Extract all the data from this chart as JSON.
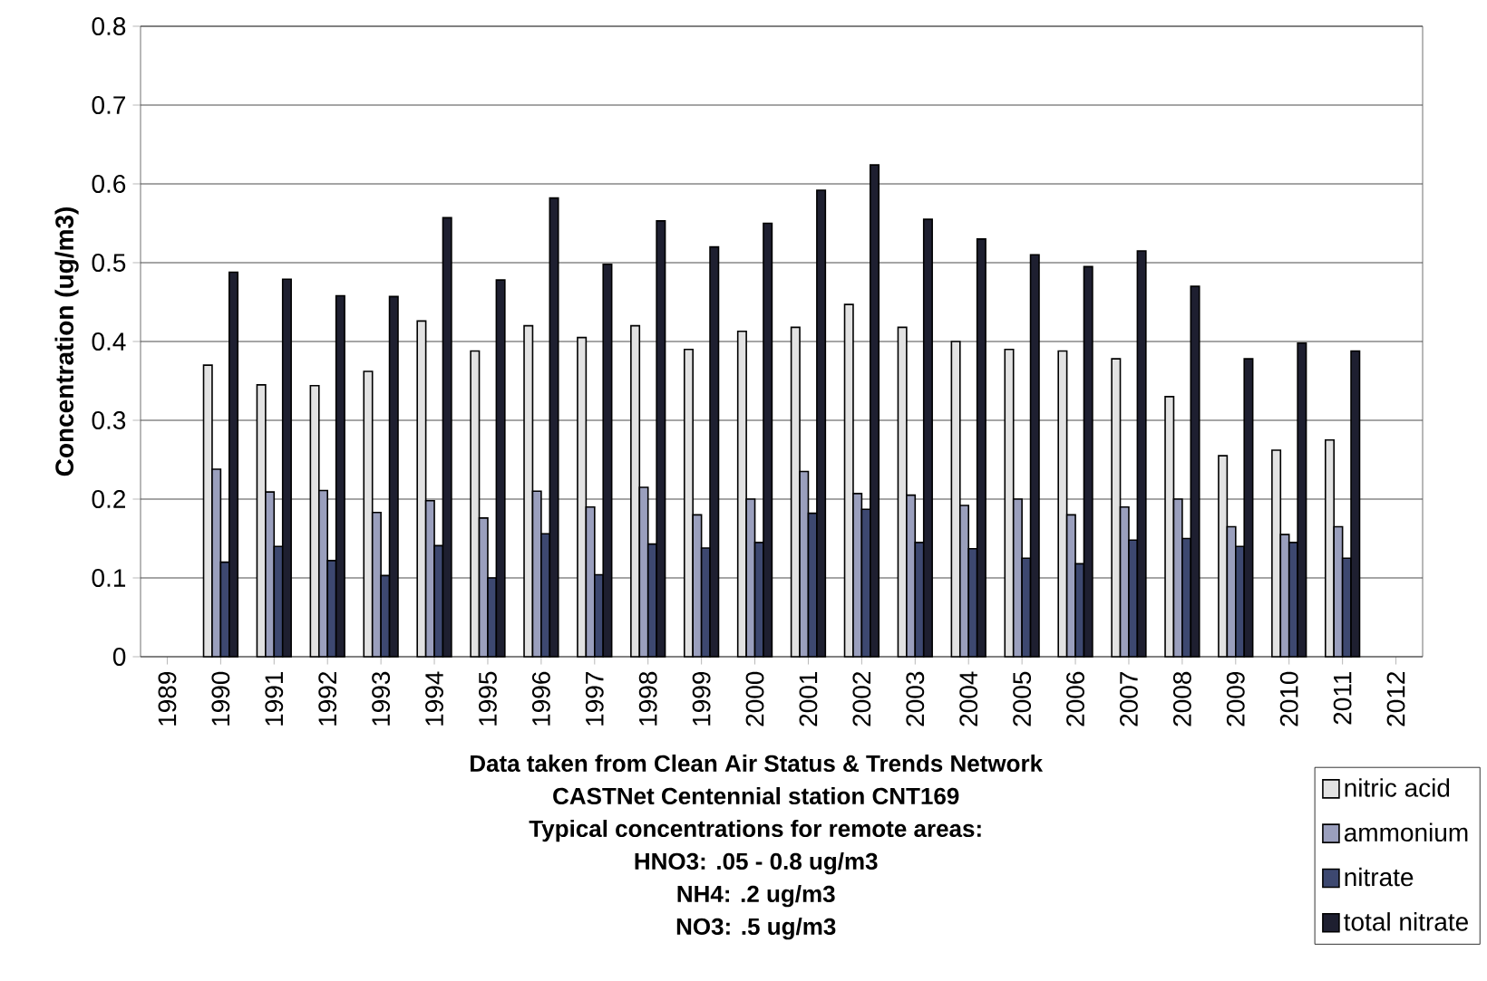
{
  "chart_data": {
    "type": "bar",
    "ylabel": "Concentration (ug/m3)",
    "categories": [
      "1989",
      "1990",
      "1991",
      "1992",
      "1993",
      "1994",
      "1995",
      "1996",
      "1997",
      "1998",
      "1999",
      "2000",
      "2001",
      "2002",
      "2003",
      "2004",
      "2005",
      "2006",
      "2007",
      "2008",
      "2009",
      "2010",
      "2011",
      "2012"
    ],
    "series": [
      {
        "name": "nitric acid",
        "color": "#e2e2e2",
        "values": [
          null,
          0.37,
          0.345,
          0.344,
          0.362,
          0.426,
          0.388,
          0.42,
          0.405,
          0.42,
          0.39,
          0.413,
          0.418,
          0.447,
          0.418,
          0.4,
          0.39,
          0.388,
          0.378,
          0.33,
          0.255,
          0.262,
          0.275,
          null
        ]
      },
      {
        "name": "ammonium",
        "color": "#9a9fbd",
        "values": [
          null,
          0.238,
          0.209,
          0.211,
          0.183,
          0.198,
          0.176,
          0.21,
          0.19,
          0.215,
          0.18,
          0.2,
          0.235,
          0.207,
          0.205,
          0.192,
          0.2,
          0.18,
          0.19,
          0.2,
          0.165,
          0.155,
          0.165,
          null
        ]
      },
      {
        "name": "nitrate",
        "color": "#3d4870",
        "values": [
          null,
          0.12,
          0.14,
          0.122,
          0.103,
          0.141,
          0.1,
          0.156,
          0.104,
          0.143,
          0.138,
          0.145,
          0.182,
          0.187,
          0.145,
          0.137,
          0.125,
          0.118,
          0.148,
          0.15,
          0.14,
          0.145,
          0.125,
          null
        ]
      },
      {
        "name": "total nitrate",
        "color": "#1e1f30",
        "values": [
          null,
          0.488,
          0.479,
          0.458,
          0.457,
          0.557,
          0.478,
          0.582,
          0.498,
          0.553,
          0.52,
          0.55,
          0.592,
          0.624,
          0.555,
          0.53,
          0.51,
          0.495,
          0.515,
          0.47,
          0.378,
          0.398,
          0.388,
          null
        ]
      }
    ],
    "ylim": [
      0,
      0.8
    ],
    "yticks": [
      0,
      0.1,
      0.2,
      0.3,
      0.4,
      0.5,
      0.6,
      0.7,
      0.8
    ],
    "grid": "y",
    "legend": "bottom right",
    "annotations": [
      "Data taken from Clean Air Status & Trends Network",
      "CASTNet Centennial station CNT169",
      "Typical concentrations for remote areas:",
      "HNO3:  .05 - 0.8 ug/m3",
      "NH4:  .2 ug/m3",
      "NO3:  .5 ug/m3"
    ]
  }
}
